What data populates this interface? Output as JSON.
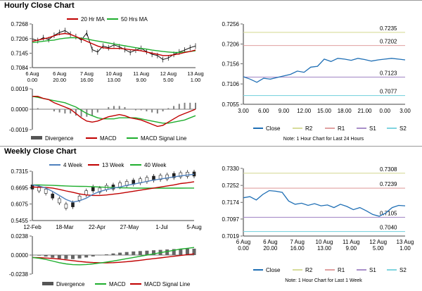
{
  "sections": {
    "hourly_title": "Hourly Close Chart",
    "weekly_title": "Weekly Close Chart"
  },
  "colors": {
    "price": "#000000",
    "ma_short": "#c00000",
    "ma_long": "#1fae2e",
    "trend4": "#4f81bd",
    "close_line": "#1f6fb5",
    "r2": "#d7dc9a",
    "r1": "#e0a0a0",
    "s1": "#a98fc9",
    "s2": "#80d4df",
    "hist": "#808080"
  },
  "chart_data": [
    {
      "id": "hourly_price",
      "type": "line",
      "legend": [
        "20 Hr MA",
        "50 Hrs MA"
      ],
      "yticks": [
        "0.7268",
        "0.7206",
        "0.7145",
        "0.7084"
      ],
      "ylim": [
        0.7084,
        0.7268
      ],
      "xtick_labels": [
        [
          "6 Aug",
          "0.00"
        ],
        [
          "6 Aug",
          "20.00"
        ],
        [
          "7 Aug",
          "16.00"
        ],
        [
          "10 Aug",
          "13.00"
        ],
        [
          "11 Aug",
          "9.00"
        ],
        [
          "12 Aug",
          "5.00"
        ],
        [
          "13 Aug",
          "1.00"
        ]
      ],
      "close": [
        0.7205,
        0.7198,
        0.721,
        0.7202,
        0.722,
        0.7232,
        0.724,
        0.7225,
        0.7215,
        0.72,
        0.723,
        0.716,
        0.715,
        0.7175,
        0.7168,
        0.718,
        0.7172,
        0.716,
        0.7148,
        0.7158,
        0.7165,
        0.7152,
        0.714,
        0.7135,
        0.7118,
        0.7125,
        0.714,
        0.715,
        0.7158,
        0.7168,
        0.7175
      ],
      "ma20": [
        0.7195,
        0.72,
        0.7205,
        0.721,
        0.7218,
        0.7225,
        0.7228,
        0.7224,
        0.7215,
        0.7205,
        0.7195,
        0.7185,
        0.7175,
        0.7168,
        0.7165,
        0.7165,
        0.7165,
        0.7163,
        0.716,
        0.7158,
        0.7155,
        0.715,
        0.7145,
        0.714,
        0.7135,
        0.7135,
        0.7138,
        0.7142,
        0.7148,
        0.7152,
        0.7158
      ],
      "ma50": [
        0.719,
        0.7192,
        0.7195,
        0.7198,
        0.72,
        0.7205,
        0.7208,
        0.721,
        0.721,
        0.7208,
        0.7205,
        0.72,
        0.7196,
        0.7192,
        0.7188,
        0.7184,
        0.718,
        0.7176,
        0.7172,
        0.7168,
        0.7165,
        0.7162,
        0.7158,
        0.7155,
        0.7152,
        0.715,
        0.7148,
        0.7148,
        0.715,
        0.7152,
        0.7155
      ]
    },
    {
      "id": "hourly_macd",
      "type": "line",
      "legend": [
        "Divergence",
        "MACD",
        "MACD Signal Line"
      ],
      "yticks": [
        "0.0019",
        "0.0000",
        "-0.0019"
      ],
      "ylim": [
        -0.0019,
        0.0019
      ],
      "macd": [
        0.0012,
        0.0012,
        0.001,
        0.0009,
        0.0006,
        0.0004,
        0.0002,
        0.0,
        -0.0004,
        -0.0008,
        -0.0011,
        -0.0012,
        -0.0011,
        -0.0009,
        -0.0007,
        -0.0006,
        -0.0005,
        -0.0006,
        -0.0008,
        -0.0009,
        -0.001,
        -0.0012,
        -0.0014,
        -0.0016,
        -0.0015,
        -0.0012,
        -0.0009,
        -0.0006,
        -0.0004,
        -0.0002,
        0.0
      ],
      "signal": [
        0.0012,
        0.0011,
        0.001,
        0.0009,
        0.0008,
        0.0007,
        0.0006,
        0.0004,
        0.0002,
        -0.0001,
        -0.0004,
        -0.0006,
        -0.0008,
        -0.0009,
        -0.0009,
        -0.0009,
        -0.0008,
        -0.0008,
        -0.0008,
        -0.0008,
        -0.0009,
        -0.001,
        -0.0011,
        -0.0012,
        -0.0013,
        -0.0013,
        -0.0012,
        -0.0011,
        -0.001,
        -0.0008,
        -0.0006
      ],
      "divergence": [
        0.0,
        0.0001,
        0.0,
        0.0,
        -0.0002,
        -0.0003,
        -0.0004,
        -0.0004,
        -0.0006,
        -0.0007,
        -0.0007,
        -0.0006,
        -0.0003,
        0.0,
        0.0002,
        0.0003,
        0.0003,
        0.0002,
        0.0,
        -0.0001,
        -0.0001,
        -0.0002,
        -0.0003,
        -0.0004,
        -0.0002,
        0.0001,
        0.0003,
        0.0005,
        0.0006,
        0.0006,
        0.0006
      ]
    },
    {
      "id": "hourly_close",
      "type": "line",
      "yticks": [
        "0.7256",
        "0.7206",
        "0.7156",
        "0.7106",
        "0.7055"
      ],
      "ylim": [
        0.7055,
        0.7256
      ],
      "xticks": [
        "3.00",
        "6.00",
        "9.00",
        "12.00",
        "15.00",
        "18.00",
        "21.00",
        "0.00",
        "3.00"
      ],
      "levels": [
        {
          "name": "R2",
          "value": 0.7235,
          "label": "0.7235"
        },
        {
          "name": "R1",
          "value": 0.7202,
          "label": "0.7202"
        },
        {
          "name": "S1",
          "value": 0.7123,
          "label": "0.7123"
        },
        {
          "name": "S2",
          "value": 0.7077,
          "label": "0.7077"
        }
      ],
      "close": [
        0.7124,
        0.7118,
        0.711,
        0.712,
        0.7118,
        0.7122,
        0.7126,
        0.713,
        0.7138,
        0.7135,
        0.7148,
        0.715,
        0.7168,
        0.7162,
        0.717,
        0.7168,
        0.7165,
        0.717,
        0.7167,
        0.7163,
        0.7166,
        0.7168,
        0.717,
        0.7168,
        0.7166
      ],
      "legend": [
        "Close",
        "R2",
        "R1",
        "S1",
        "S2"
      ],
      "note": "Note: 1 Hour Chart for Last 24 Hours"
    },
    {
      "id": "weekly_price",
      "type": "line",
      "legend": [
        "4 Week",
        "13 Week",
        "40 Week"
      ],
      "yticks": [
        "0.7315",
        "0.6695",
        "0.6075",
        "0.5455"
      ],
      "ylim": [
        0.5455,
        0.7315
      ],
      "xticks": [
        "12-Feb",
        "18-Mar",
        "22-Apr",
        "27-May",
        "1-Jul",
        "5-Aug"
      ],
      "close": [
        0.672,
        0.665,
        0.656,
        0.638,
        0.62,
        0.6,
        0.605,
        0.63,
        0.65,
        0.665,
        0.66,
        0.67,
        0.672,
        0.68,
        0.685,
        0.69,
        0.695,
        0.7,
        0.705,
        0.708,
        0.71,
        0.715,
        0.718,
        0.72,
        0.721
      ],
      "w4": [
        0.68,
        0.676,
        0.668,
        0.655,
        0.64,
        0.625,
        0.615,
        0.62,
        0.63,
        0.645,
        0.655,
        0.662,
        0.668,
        0.672,
        0.678,
        0.683,
        0.688,
        0.693,
        0.698,
        0.702,
        0.706,
        0.71,
        0.714,
        0.717,
        0.72
      ],
      "w13": [
        0.672,
        0.671,
        0.67,
        0.668,
        0.663,
        0.657,
        0.652,
        0.646,
        0.642,
        0.64,
        0.64,
        0.642,
        0.645,
        0.648,
        0.652,
        0.656,
        0.66,
        0.664,
        0.668,
        0.672,
        0.676,
        0.68,
        0.685,
        0.688,
        0.692
      ],
      "w40": [
        0.68,
        0.68,
        0.679,
        0.678,
        0.677,
        0.676,
        0.675,
        0.6745,
        0.674,
        0.673,
        0.672,
        0.671,
        0.67,
        0.669,
        0.6685,
        0.668,
        0.6678,
        0.6676,
        0.6676,
        0.6676,
        0.6676,
        0.6677,
        0.6678,
        0.668,
        0.668
      ]
    },
    {
      "id": "weekly_macd",
      "type": "line",
      "legend": [
        "Divergence",
        "MACD",
        "MACD Signal Line"
      ],
      "yticks": [
        "0.0238",
        "0.0000",
        "-0.0238"
      ],
      "ylim": [
        -0.0238,
        0.0238
      ],
      "macd": [
        -0.003,
        -0.004,
        -0.0055,
        -0.0075,
        -0.0095,
        -0.011,
        -0.012,
        -0.0122,
        -0.0118,
        -0.011,
        -0.01,
        -0.0088,
        -0.0075,
        -0.006,
        -0.0045,
        -0.003,
        -0.0015,
        0.0,
        0.0015,
        0.003,
        0.0045,
        0.006,
        0.0075,
        0.0085,
        0.0095
      ],
      "signal": [
        -0.003,
        -0.0033,
        -0.0037,
        -0.0042,
        -0.005,
        -0.006,
        -0.007,
        -0.008,
        -0.0088,
        -0.0093,
        -0.0096,
        -0.0097,
        -0.0095,
        -0.009,
        -0.0083,
        -0.0075,
        -0.0065,
        -0.0055,
        -0.0045,
        -0.0035,
        -0.0025,
        -0.0015,
        -0.0005,
        0.0005,
        0.0015
      ],
      "divergence": [
        0.0,
        -0.0007,
        -0.0018,
        -0.0033,
        -0.0045,
        -0.005,
        -0.005,
        -0.0042,
        -0.003,
        -0.0017,
        -0.0004,
        0.0009,
        0.002,
        0.003,
        0.0038,
        0.0045,
        0.005,
        0.0055,
        0.006,
        0.0065,
        0.007,
        0.0075,
        0.008,
        0.008,
        0.008
      ]
    },
    {
      "id": "weekly_close",
      "type": "line",
      "yticks": [
        "0.7330",
        "0.7252",
        "0.7174",
        "0.7097",
        "0.7019"
      ],
      "ylim": [
        0.7019,
        0.733
      ],
      "xtick_labels": [
        [
          "6 Aug",
          "0.00"
        ],
        [
          "6 Aug",
          "20.00"
        ],
        [
          "7 Aug",
          "16.00"
        ],
        [
          "10 Aug",
          "13.00"
        ],
        [
          "11 Aug",
          "9.00"
        ],
        [
          "12 Aug",
          "5.00"
        ],
        [
          "13 Aug",
          "1.00"
        ]
      ],
      "levels": [
        {
          "name": "R2",
          "value": 0.7308,
          "label": "0.7308"
        },
        {
          "name": "R1",
          "value": 0.7239,
          "label": "0.7239"
        },
        {
          "name": "S1",
          "value": 0.7105,
          "label": "0.7105"
        },
        {
          "name": "S2",
          "value": 0.704,
          "label": "0.7040"
        }
      ],
      "close": [
        0.7195,
        0.72,
        0.7185,
        0.721,
        0.7228,
        0.7225,
        0.722,
        0.718,
        0.7165,
        0.717,
        0.716,
        0.7168,
        0.7158,
        0.7162,
        0.715,
        0.7165,
        0.7155,
        0.714,
        0.715,
        0.7135,
        0.7118,
        0.711,
        0.7125,
        0.715,
        0.716,
        0.7158
      ],
      "legend": [
        "Close",
        "R2",
        "R1",
        "S1",
        "S2"
      ],
      "note": "Note: 1 Hour Chart for Last 1 Week"
    }
  ]
}
